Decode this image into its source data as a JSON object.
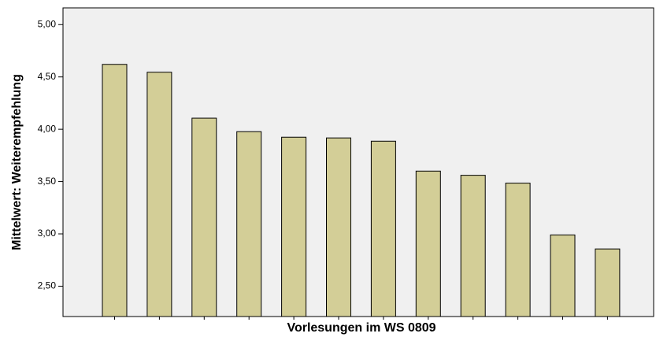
{
  "chart_data": {
    "type": "bar",
    "x_label": "Vorlesungen im WS 0809",
    "y_label": "Mittelwert: Weiterempfehlung",
    "categories": [
      null,
      null,
      null,
      null,
      null,
      null,
      null,
      null,
      null,
      null,
      null,
      null
    ],
    "values": [
      4.62,
      4.545,
      4.106,
      3.977,
      3.924,
      3.917,
      3.886,
      3.6,
      3.56,
      3.485,
      2.99,
      2.856
    ],
    "color": "#d3ce97",
    "ylim": [
      2.21,
      5.16
    ],
    "yticks": [
      {
        "value": 2.5,
        "label": "2,50"
      },
      {
        "value": 3,
        "label": "3,00"
      },
      {
        "value": 3.5,
        "label": "3,50"
      },
      {
        "value": 4,
        "label": "4,00"
      },
      {
        "value": 4.5,
        "label": "4,50"
      },
      {
        "value": 5,
        "label": "5,00"
      }
    ]
  }
}
